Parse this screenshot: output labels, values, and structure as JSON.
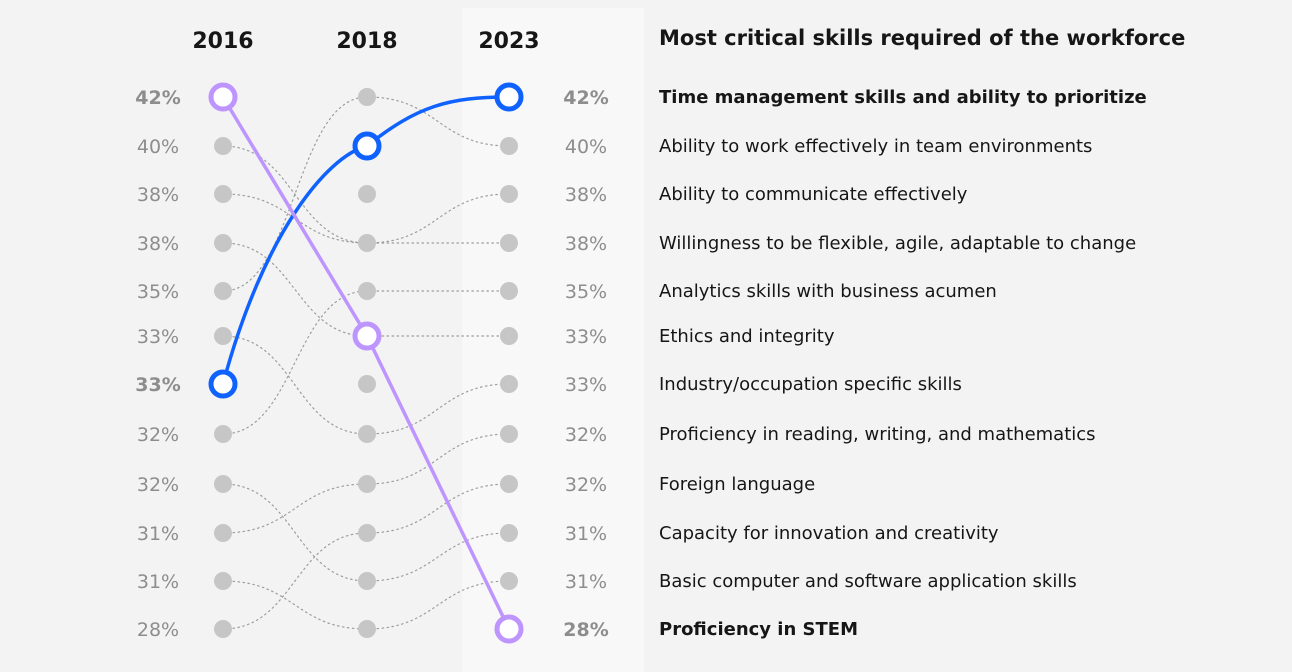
{
  "chart_data": {
    "type": "slope",
    "title": "Most critical skills required of the workforce",
    "years": [
      "2016",
      "2018",
      "2023"
    ],
    "skills": [
      {
        "name": "Time management skills and ability to prioritize",
        "ranks": [
          7,
          2,
          1
        ],
        "highlight": true
      },
      {
        "name": "Ability to work effectively in team environments",
        "ranks": [
          5,
          1,
          2
        ]
      },
      {
        "name": "Ability to communicate effectively",
        "ranks": [
          3,
          4,
          3
        ]
      },
      {
        "name": "Willingness to be flexible, agile, adaptable to change",
        "ranks": [
          2,
          4,
          4
        ]
      },
      {
        "name": "Analytics skills with business acumen",
        "ranks": [
          8,
          5,
          5
        ]
      },
      {
        "name": "Ethics and integrity",
        "ranks": [
          4,
          6,
          6
        ]
      },
      {
        "name": "Industry/occupation specific skills",
        "ranks": [
          6,
          8,
          7
        ]
      },
      {
        "name": "Proficiency in reading, writing, and mathematics",
        "ranks": [
          10,
          9,
          8
        ]
      },
      {
        "name": "Foreign language",
        "ranks": [
          12,
          10,
          9
        ]
      },
      {
        "name": "Capacity for innovation and creativity",
        "ranks": [
          9,
          11,
          10
        ]
      },
      {
        "name": "Basic computer and software application skills",
        "ranks": [
          11,
          12,
          11
        ]
      },
      {
        "name": "Proficiency in STEM",
        "ranks": [
          1,
          6,
          12
        ],
        "highlight": true
      }
    ],
    "left_values": [
      "42%",
      "40%",
      "38%",
      "38%",
      "35%",
      "33%",
      "33%",
      "32%",
      "32%",
      "31%",
      "31%",
      "28%"
    ],
    "right_values": [
      "42%",
      "40%",
      "38%",
      "38%",
      "35%",
      "33%",
      "33%",
      "32%",
      "32%",
      "31%",
      "31%",
      "28%"
    ]
  },
  "colors": {
    "blue": "#0f62fe",
    "purple": "#be95ff",
    "dot": "#c6c6c6",
    "faint_line": "#8d8d8d",
    "text": "#161616",
    "muted": "#8d8d8d"
  }
}
